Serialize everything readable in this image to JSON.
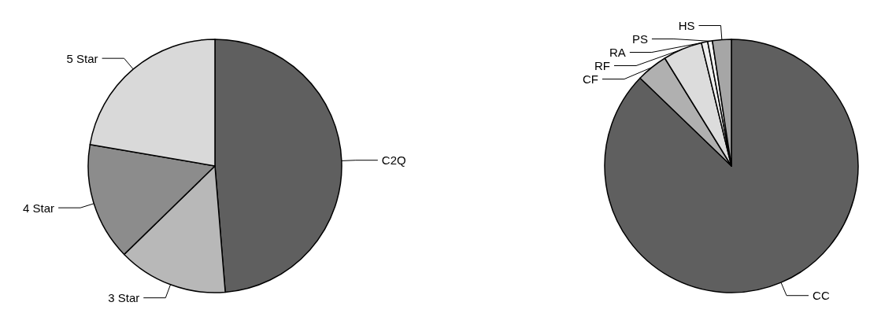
{
  "chart_data": [
    {
      "type": "pie",
      "categories": [
        "C2Q",
        "3 Star",
        "4 Star",
        "5 Star"
      ],
      "values": [
        48.7,
        14,
        15,
        22.3
      ],
      "colors": [
        "#5f5f5f",
        "#b8b8b8",
        "#8c8c8c",
        "#d9d9d9"
      ]
    },
    {
      "type": "pie",
      "categories": [
        "CC",
        "CF",
        "RF",
        "RA",
        "PS",
        "HS"
      ],
      "values": [
        87.2,
        4,
        5,
        0.8,
        0.6,
        2.4
      ],
      "colors": [
        "#5f5f5f",
        "#b0b0b0",
        "#dcdcdc",
        "#eeeeee",
        "#f4f4f4",
        "#a6a6a6"
      ]
    }
  ]
}
